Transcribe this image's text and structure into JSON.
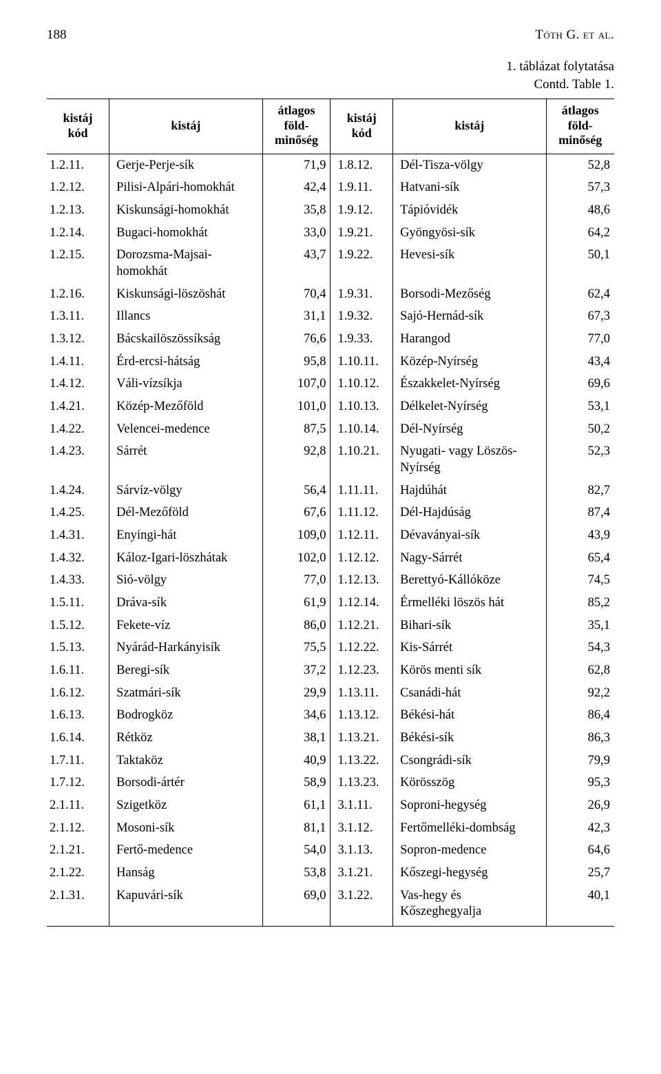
{
  "page_number": "188",
  "running_head": "Tóth G. et al.",
  "caption_line1": "1. táblázat folytatása",
  "caption_line2": "Contd. Table 1.",
  "headers": {
    "code": "kistáj kód",
    "name": "kistáj",
    "val": "átlagos föld-minőség"
  },
  "left": [
    {
      "code": "1.2.11.",
      "name": "Gerje-Perje-sík",
      "val": "71,9"
    },
    {
      "code": "1.2.12.",
      "name": "Pilisi-Alpári-homokhát",
      "val": "42,4"
    },
    {
      "code": "1.2.13.",
      "name": "Kiskunsági-homokhát",
      "val": "35,8"
    },
    {
      "code": "1.2.14.",
      "name": "Bugaci-homokhát",
      "val": "33,0"
    },
    {
      "code": "1.2.15.",
      "name": "Dorozsma-Majsai-homokhát",
      "val": "43,7"
    },
    {
      "code": "1.2.16.",
      "name": "Kiskunsági-löszöshát",
      "val": "70,4"
    },
    {
      "code": "1.3.11.",
      "name": "Illancs",
      "val": "31,1"
    },
    {
      "code": "1.3.12.",
      "name": "Bácskailöszössíkság",
      "val": "76,6"
    },
    {
      "code": "1.4.11.",
      "name": "Érd-ercsi-hátság",
      "val": "95,8"
    },
    {
      "code": "1.4.12.",
      "name": "Váli-vízsíkja",
      "val": "107,0"
    },
    {
      "code": "1.4.21.",
      "name": "Közép-Mezőföld",
      "val": "101,0"
    },
    {
      "code": "1.4.22.",
      "name": "Velencei-medence",
      "val": "87,5"
    },
    {
      "code": "1.4.23.",
      "name": "Sárrét",
      "val": "92,8"
    },
    {
      "code": "1.4.24.",
      "name": "Sárvíz-völgy",
      "val": "56,4"
    },
    {
      "code": "1.4.25.",
      "name": "Dél-Mezőföld",
      "val": "67,6"
    },
    {
      "code": "1.4.31.",
      "name": "Enyingi-hát",
      "val": "109,0"
    },
    {
      "code": "1.4.32.",
      "name": "Káloz-Igari-löszhátak",
      "val": "102,0"
    },
    {
      "code": "1.4.33.",
      "name": "Sió-völgy",
      "val": "77,0"
    },
    {
      "code": "1.5.11.",
      "name": "Dráva-sík",
      "val": "61,9"
    },
    {
      "code": "1.5.12.",
      "name": "Fekete-víz",
      "val": "86,0"
    },
    {
      "code": "1.5.13.",
      "name": "Nyárád-Harkányisík",
      "val": "75,5"
    },
    {
      "code": "1.6.11.",
      "name": "Beregi-sík",
      "val": "37,2"
    },
    {
      "code": "1.6.12.",
      "name": "Szatmári-sík",
      "val": "29,9"
    },
    {
      "code": "1.6.13.",
      "name": "Bodrogköz",
      "val": "34,6"
    },
    {
      "code": "1.6.14.",
      "name": "Rétköz",
      "val": "38,1"
    },
    {
      "code": "1.7.11.",
      "name": "Taktaköz",
      "val": "40,9"
    },
    {
      "code": "1.7.12.",
      "name": "Borsodi-ártér",
      "val": "58,9"
    },
    {
      "code": "2.1.11.",
      "name": "Szigetköz",
      "val": "61,1"
    },
    {
      "code": "2.1.12.",
      "name": "Mosoni-sík",
      "val": "81,1"
    },
    {
      "code": "2.1.21.",
      "name": "Fertő-medence",
      "val": "54,0"
    },
    {
      "code": "2.1.22.",
      "name": "Hanság",
      "val": "53,8"
    },
    {
      "code": "2.1.31.",
      "name": "Kapuvári-sík",
      "val": "69,0"
    }
  ],
  "right": [
    {
      "code": "1.8.12.",
      "name": "Dél-Tisza-völgy",
      "val": "52,8"
    },
    {
      "code": "1.9.11.",
      "name": "Hatvani-sík",
      "val": "57,3"
    },
    {
      "code": "1.9.12.",
      "name": "Tápióvidék",
      "val": "48,6"
    },
    {
      "code": "1.9.21.",
      "name": "Gyöngyösi-sík",
      "val": "64,2"
    },
    {
      "code": "1.9.22.",
      "name": "Hevesi-sík",
      "val": "50,1"
    },
    {
      "code": "1.9.31.",
      "name": "Borsodi-Mezőség",
      "val": "62,4"
    },
    {
      "code": "1.9.32.",
      "name": "Sajó-Hernád-sík",
      "val": "67,3"
    },
    {
      "code": "1.9.33.",
      "name": "Harangod",
      "val": "77,0"
    },
    {
      "code": "1.10.11.",
      "name": "Közép-Nyírség",
      "val": "43,4"
    },
    {
      "code": "1.10.12.",
      "name": "Északkelet-Nyírség",
      "val": "69,6"
    },
    {
      "code": "1.10.13.",
      "name": "Délkelet-Nyírség",
      "val": "53,1"
    },
    {
      "code": "1.10.14.",
      "name": "Dél-Nyírség",
      "val": "50,2"
    },
    {
      "code": "1.10.21.",
      "name": "Nyugati- vagy Löszös-Nyírség",
      "val": "52,3"
    },
    {
      "code": "1.11.11.",
      "name": "Hajdúhát",
      "val": "82,7"
    },
    {
      "code": "1.11.12.",
      "name": "Dél-Hajdúság",
      "val": "87,4"
    },
    {
      "code": "1.12.11.",
      "name": "Dévaványai-sík",
      "val": "43,9"
    },
    {
      "code": "1.12.12.",
      "name": "Nagy-Sárrét",
      "val": "65,4"
    },
    {
      "code": "1.12.13.",
      "name": "Berettyó-Kállóköze",
      "val": "74,5"
    },
    {
      "code": "1.12.14.",
      "name": "Érmelléki löszös hát",
      "val": "85,2"
    },
    {
      "code": "1.12.21.",
      "name": "Bihari-sík",
      "val": "35,1"
    },
    {
      "code": "1.12.22.",
      "name": "Kis-Sárrét",
      "val": "54,3"
    },
    {
      "code": "1.12.23.",
      "name": "Körös menti sík",
      "val": "62,8"
    },
    {
      "code": "1.13.11.",
      "name": "Csanádi-hát",
      "val": "92,2"
    },
    {
      "code": "1.13.12.",
      "name": "Békési-hát",
      "val": "86,4"
    },
    {
      "code": "1.13.21.",
      "name": "Békési-sík",
      "val": "86,3"
    },
    {
      "code": "1.13.22.",
      "name": "Csongrádi-sík",
      "val": "79,9"
    },
    {
      "code": "1.13.23.",
      "name": "Körösszög",
      "val": "95,3"
    },
    {
      "code": "3.1.11.",
      "name": "Soproni-hegység",
      "val": "26,9"
    },
    {
      "code": "3.1.12.",
      "name": "Fertőmelléki-dombság",
      "val": "42,3"
    },
    {
      "code": "3.1.13.",
      "name": "Sopron-medence",
      "val": "64,6"
    },
    {
      "code": "3.1.21.",
      "name": "Kőszegi-hegység",
      "val": "25,7"
    },
    {
      "code": "3.1.22.",
      "name": "Vas-hegy és Kőszeghegyalja",
      "val": "40,1"
    }
  ]
}
